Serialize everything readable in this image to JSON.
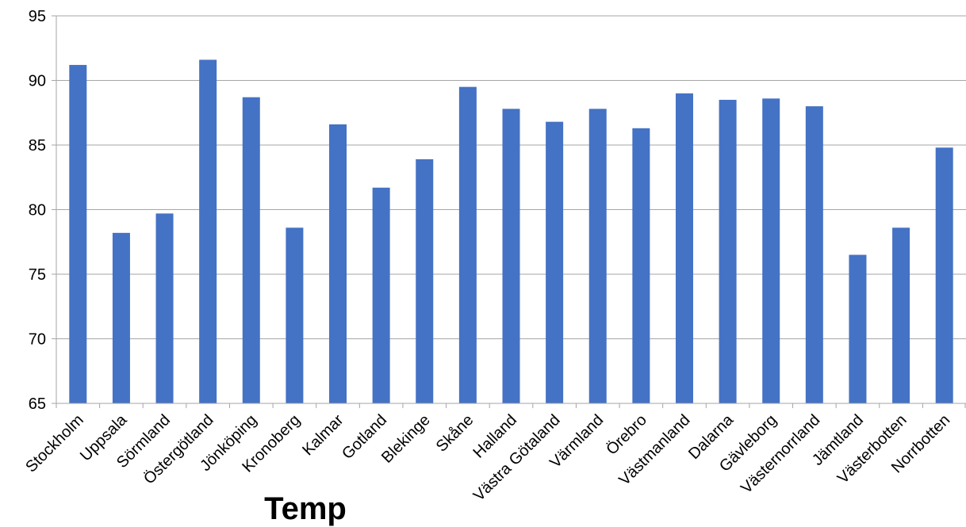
{
  "chart_data": {
    "type": "bar",
    "title": "Temp",
    "xlabel": "",
    "ylabel": "",
    "ylim": [
      65,
      95
    ],
    "yticks": [
      65,
      70,
      75,
      80,
      85,
      90,
      95
    ],
    "grid": true,
    "legend": "none",
    "bar_color": "#4472C4",
    "categories": [
      "Stockholm",
      "Uppsala",
      "Sörmland",
      "Östergötland",
      "Jönköping",
      "Kronoberg",
      "Kalmar",
      "Gotland",
      "Blekinge",
      "Skåne",
      "Halland",
      "Västra Götaland",
      "Värmland",
      "Örebro",
      "Västmanland",
      "Dalarna",
      "Gävleborg",
      "Västernorrland",
      "Jämtland",
      "Västerbotten",
      "Norrbotten"
    ],
    "series": [
      {
        "values": [
          91.2,
          78.2,
          79.7,
          91.6,
          88.7,
          78.6,
          86.6,
          81.7,
          83.9,
          89.5,
          87.8,
          86.8,
          87.8,
          86.3,
          89.0,
          88.5,
          88.6,
          88.0,
          76.5,
          78.6,
          84.8
        ]
      }
    ]
  }
}
